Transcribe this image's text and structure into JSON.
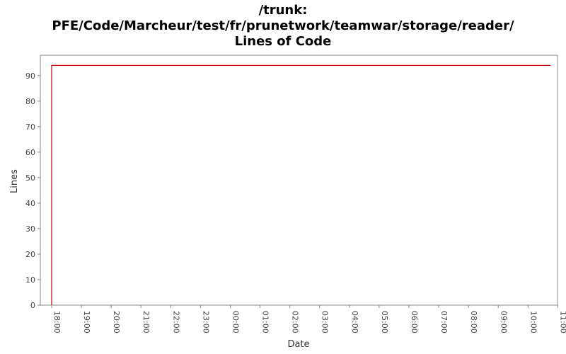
{
  "chart_data": {
    "type": "line",
    "title_lines": [
      "/trunk:",
      "PFE/Code/Marcheur/test/fr/prunetwork/teamwar/storage/reader/",
      "Lines of Code"
    ],
    "xlabel": "Date",
    "ylabel": "Lines",
    "x_ticks": [
      "18:00",
      "19:00",
      "20:00",
      "21:00",
      "22:00",
      "23:00",
      "00:00",
      "01:00",
      "02:00",
      "03:00",
      "04:00",
      "05:00",
      "06:00",
      "07:00",
      "08:00",
      "09:00",
      "10:00",
      "11:00"
    ],
    "y_ticks": [
      0,
      10,
      20,
      30,
      40,
      50,
      60,
      70,
      80,
      90
    ],
    "ylim": [
      0,
      98
    ],
    "xlim_hours": [
      17.62,
      34.99
    ],
    "series": [
      {
        "color": "#cc0000",
        "points": [
          {
            "x": "18:00",
            "y": 0
          },
          {
            "x": "18:00",
            "y": 94
          },
          {
            "x": "10:45",
            "y": 94
          }
        ]
      }
    ],
    "grid": false
  }
}
